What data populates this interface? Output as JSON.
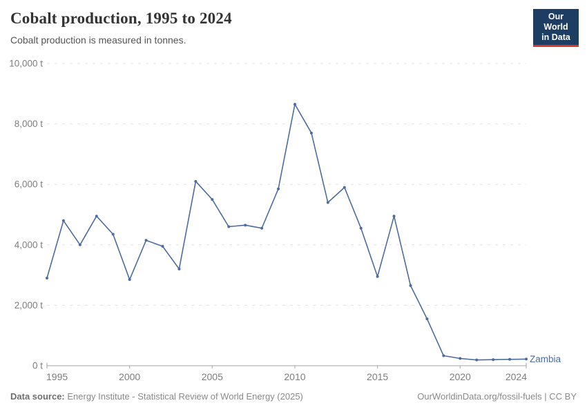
{
  "header": {
    "title": "Cobalt production, 1995 to 2024",
    "subtitle": "Cobalt production is measured in tonnes.",
    "logo": {
      "line1": "Our World",
      "line2": "in Data"
    }
  },
  "footer": {
    "source_label": "Data source:",
    "source_text": " Energy Institute - Statistical Review of World Energy (2025)",
    "link_text": "OurWorldinData.org/fossil-fuels",
    "license_text": " | CC BY"
  },
  "colors": {
    "series_blue": "#4c6ba0",
    "logo_navy": "#1d3d63",
    "logo_red": "#d8362d",
    "grid": "#e3e3e3",
    "axis": "#a3a3a3",
    "axis_text": "#7e7e7e",
    "title_text": "#333333",
    "subtitle_text": "#555555",
    "footer_text": "#8a8a8a"
  },
  "chart_data": {
    "type": "line",
    "title": "Cobalt production, 1995 to 2024",
    "subtitle": "Cobalt production is measured in tonnes.",
    "unit": "t",
    "x": [
      1995,
      1996,
      1997,
      1998,
      1999,
      2000,
      2001,
      2002,
      2003,
      2004,
      2005,
      2006,
      2007,
      2008,
      2009,
      2010,
      2011,
      2012,
      2013,
      2014,
      2015,
      2016,
      2017,
      2018,
      2019,
      2020,
      2021,
      2022,
      2023,
      2024
    ],
    "series": [
      {
        "name": "Zambia",
        "color": "#4c6ba0",
        "values": [
          2900,
          4800,
          4000,
          4950,
          4350,
          2850,
          4150,
          3950,
          3200,
          6100,
          5500,
          4600,
          4650,
          4550,
          5850,
          8650,
          7700,
          5400,
          5900,
          4550,
          2950,
          4950,
          2650,
          1550,
          330,
          240,
          190,
          200,
          210,
          220
        ]
      }
    ],
    "ylim": [
      0,
      10000
    ],
    "yticks": [
      0,
      2000,
      4000,
      6000,
      8000,
      10000
    ],
    "ytick_label_format": "#,### t",
    "xticks": [
      1995,
      2000,
      2005,
      2010,
      2015,
      2020,
      2024
    ],
    "grid": "dashed-horizontal",
    "legend": "end-of-line-label"
  }
}
